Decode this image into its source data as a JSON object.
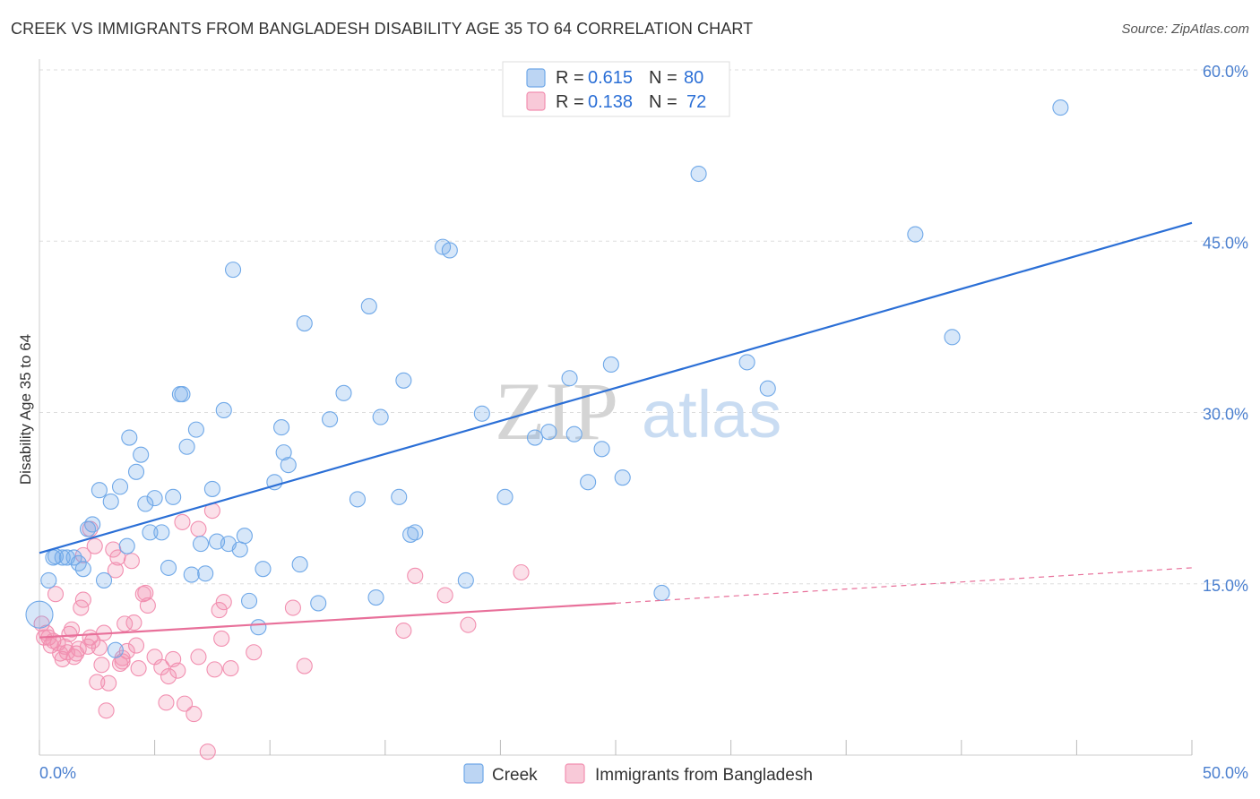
{
  "title": "CREEK VS IMMIGRANTS FROM BANGLADESH DISABILITY AGE 35 TO 64 CORRELATION CHART",
  "source": "Source: ZipAtlas.com",
  "watermark": {
    "zip": "ZIP",
    "atlas": "atlas"
  },
  "colors": {
    "blue": "#6fa8e8",
    "blue_line": "#2b6fd6",
    "pink": "#f28fb0",
    "pink_line": "#e8709a",
    "tick": "#4a7fcf",
    "grid": "#dddddd"
  },
  "legend": {
    "r_label": "R =",
    "n_label": "N =",
    "rows": [
      {
        "name": "Creek",
        "r": "0.615",
        "n": "80"
      },
      {
        "name": "Immigrants from Bangladesh",
        "r": "0.138",
        "n": "72"
      }
    ]
  },
  "chart_data": {
    "type": "scatter",
    "title": "CREEK VS IMMIGRANTS FROM BANGLADESH DISABILITY AGE 35 TO 64 CORRELATION CHART",
    "xlabel": "",
    "ylabel": "Disability Age 35 to 64",
    "xlim": [
      0,
      50
    ],
    "ylim": [
      0,
      60
    ],
    "x_tick_labels": [
      "0.0%",
      "50.0%"
    ],
    "y_ticks": [
      15,
      30,
      45,
      60
    ],
    "y_tick_labels": [
      "15.0%",
      "30.0%",
      "45.0%",
      "60.0%"
    ],
    "grid": true,
    "legend_position": "top-center",
    "series": [
      {
        "name": "Creek",
        "r": 0.615,
        "n": 80,
        "trend": {
          "x": [
            0,
            50
          ],
          "y": [
            17.7,
            46.6
          ]
        },
        "points": [
          [
            0.0,
            12.3
          ],
          [
            0.4,
            15.3
          ],
          [
            0.6,
            17.3
          ],
          [
            0.7,
            17.4
          ],
          [
            1.0,
            17.3
          ],
          [
            1.2,
            17.3
          ],
          [
            1.5,
            17.3
          ],
          [
            1.7,
            16.8
          ],
          [
            1.9,
            16.3
          ],
          [
            2.1,
            19.8
          ],
          [
            2.3,
            20.2
          ],
          [
            2.6,
            23.2
          ],
          [
            2.8,
            15.3
          ],
          [
            3.1,
            22.2
          ],
          [
            3.5,
            23.5
          ],
          [
            3.8,
            18.3
          ],
          [
            3.9,
            27.8
          ],
          [
            4.2,
            24.8
          ],
          [
            4.4,
            26.3
          ],
          [
            4.6,
            22.0
          ],
          [
            4.8,
            19.5
          ],
          [
            5.0,
            22.5
          ],
          [
            5.3,
            19.5
          ],
          [
            5.6,
            16.4
          ],
          [
            5.8,
            22.6
          ],
          [
            6.1,
            31.6
          ],
          [
            6.2,
            31.6
          ],
          [
            6.4,
            27.0
          ],
          [
            6.6,
            15.8
          ],
          [
            6.8,
            28.5
          ],
          [
            7.0,
            18.5
          ],
          [
            7.2,
            15.9
          ],
          [
            7.5,
            23.3
          ],
          [
            7.7,
            18.7
          ],
          [
            8.0,
            30.2
          ],
          [
            8.2,
            18.5
          ],
          [
            8.4,
            42.5
          ],
          [
            8.7,
            18.0
          ],
          [
            8.9,
            19.2
          ],
          [
            9.1,
            13.5
          ],
          [
            9.5,
            11.2
          ],
          [
            9.7,
            16.3
          ],
          [
            10.2,
            23.9
          ],
          [
            10.5,
            28.7
          ],
          [
            10.6,
            26.5
          ],
          [
            10.8,
            25.4
          ],
          [
            11.3,
            16.7
          ],
          [
            11.5,
            37.8
          ],
          [
            12.1,
            13.3
          ],
          [
            12.6,
            29.4
          ],
          [
            13.2,
            31.7
          ],
          [
            13.8,
            22.4
          ],
          [
            14.3,
            39.3
          ],
          [
            14.6,
            13.8
          ],
          [
            14.8,
            29.6
          ],
          [
            15.6,
            22.6
          ],
          [
            15.8,
            32.8
          ],
          [
            16.1,
            19.3
          ],
          [
            16.3,
            19.5
          ],
          [
            17.5,
            44.5
          ],
          [
            17.8,
            44.2
          ],
          [
            18.5,
            15.3
          ],
          [
            19.2,
            29.9
          ],
          [
            20.2,
            22.6
          ],
          [
            21.5,
            27.8
          ],
          [
            22.1,
            28.3
          ],
          [
            23.0,
            33.0
          ],
          [
            23.2,
            28.1
          ],
          [
            23.8,
            23.9
          ],
          [
            24.4,
            26.8
          ],
          [
            24.8,
            34.2
          ],
          [
            25.3,
            24.3
          ],
          [
            27.0,
            14.2
          ],
          [
            28.6,
            50.9
          ],
          [
            30.7,
            34.4
          ],
          [
            31.6,
            32.1
          ],
          [
            38.0,
            45.6
          ],
          [
            39.6,
            36.6
          ],
          [
            44.3,
            56.7
          ],
          [
            3.3,
            9.2
          ]
        ]
      },
      {
        "name": "Immigrants from Bangladesh",
        "r": 0.138,
        "n": 72,
        "trend": {
          "x": [
            0,
            25
          ],
          "y": [
            10.3,
            13.3
          ]
        },
        "trend_dashed": {
          "x": [
            25,
            50
          ],
          "y": [
            13.3,
            16.4
          ]
        },
        "points": [
          [
            0.1,
            11.5
          ],
          [
            0.2,
            10.3
          ],
          [
            0.3,
            10.7
          ],
          [
            0.4,
            10.3
          ],
          [
            0.5,
            9.6
          ],
          [
            0.6,
            10.0
          ],
          [
            0.7,
            14.1
          ],
          [
            0.8,
            9.8
          ],
          [
            0.9,
            8.9
          ],
          [
            1.0,
            8.4
          ],
          [
            1.1,
            9.5
          ],
          [
            1.2,
            9.0
          ],
          [
            1.3,
            10.6
          ],
          [
            1.4,
            11.0
          ],
          [
            1.5,
            8.6
          ],
          [
            1.6,
            8.9
          ],
          [
            1.7,
            9.3
          ],
          [
            1.8,
            12.9
          ],
          [
            1.9,
            13.6
          ],
          [
            2.1,
            9.5
          ],
          [
            2.2,
            10.3
          ],
          [
            2.3,
            10.0
          ],
          [
            2.5,
            6.4
          ],
          [
            2.6,
            9.4
          ],
          [
            2.7,
            7.9
          ],
          [
            2.8,
            10.7
          ],
          [
            2.9,
            3.9
          ],
          [
            3.0,
            6.3
          ],
          [
            3.2,
            18.0
          ],
          [
            3.3,
            16.2
          ],
          [
            3.4,
            17.3
          ],
          [
            3.5,
            8.0
          ],
          [
            3.6,
            8.2
          ],
          [
            3.7,
            11.5
          ],
          [
            3.8,
            9.1
          ],
          [
            4.0,
            17.0
          ],
          [
            4.1,
            11.6
          ],
          [
            4.2,
            9.6
          ],
          [
            4.3,
            7.6
          ],
          [
            4.5,
            14.1
          ],
          [
            4.6,
            14.2
          ],
          [
            4.7,
            13.1
          ],
          [
            5.0,
            8.6
          ],
          [
            5.3,
            7.7
          ],
          [
            5.5,
            4.6
          ],
          [
            5.6,
            6.9
          ],
          [
            5.8,
            8.4
          ],
          [
            6.0,
            7.4
          ],
          [
            6.2,
            20.4
          ],
          [
            6.3,
            4.5
          ],
          [
            6.7,
            3.6
          ],
          [
            6.9,
            8.6
          ],
          [
            7.3,
            0.3
          ],
          [
            7.5,
            21.4
          ],
          [
            7.6,
            7.5
          ],
          [
            7.8,
            12.7
          ],
          [
            7.9,
            10.2
          ],
          [
            8.0,
            13.4
          ],
          [
            8.3,
            7.6
          ],
          [
            9.3,
            9.0
          ],
          [
            11.0,
            12.9
          ],
          [
            11.5,
            7.8
          ],
          [
            15.8,
            10.9
          ],
          [
            16.3,
            15.7
          ],
          [
            17.6,
            14.0
          ],
          [
            18.6,
            11.4
          ],
          [
            20.9,
            16.0
          ],
          [
            2.2,
            19.8
          ],
          [
            1.9,
            17.5
          ],
          [
            2.4,
            18.3
          ],
          [
            6.9,
            19.8
          ],
          [
            3.6,
            8.5
          ]
        ]
      }
    ]
  }
}
